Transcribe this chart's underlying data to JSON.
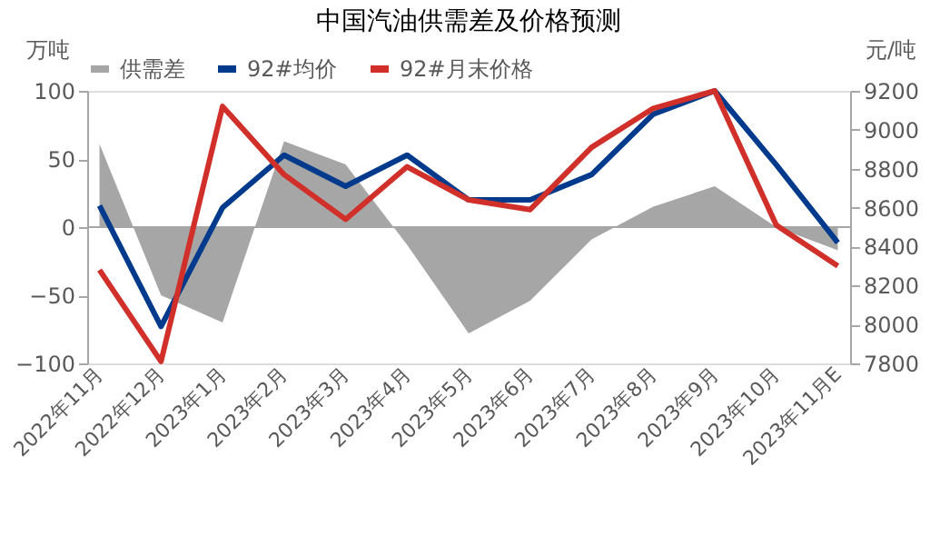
{
  "chart_data": {
    "type": "area",
    "title": "中国汽油供需差及价格预测",
    "ylabel": "万吨",
    "y2label": "元/吨",
    "categories": [
      "2022年11月",
      "2022年12月",
      "2023年1月",
      "2023年2月",
      "2023年3月",
      "2023年4月",
      "2023年5月",
      "2023年6月",
      "2023年7月",
      "2023年8月",
      "2023年9月",
      "2023年10月",
      "2023年11月E"
    ],
    "series": [
      {
        "name": "供需差",
        "color": "#a6a6a6",
        "values": [
          61,
          -50,
          -70,
          63,
          46,
          -13,
          -78,
          -54,
          -9,
          15,
          30,
          0,
          -17
        ]
      },
      {
        "name": "92#均价",
        "type": "line",
        "axis": "y2",
        "color": "#003a8c",
        "values": [
          8610,
          7990,
          8600,
          8870,
          8710,
          8870,
          8640,
          8640,
          8770,
          9080,
          9200,
          8820,
          8420
        ]
      },
      {
        "name": "92#月末价格",
        "type": "line",
        "axis": "y2",
        "color": "#d1302a",
        "values": [
          8280,
          7810,
          9120,
          8770,
          8540,
          8810,
          8640,
          8590,
          8910,
          9110,
          9200,
          8510,
          8300
        ]
      }
    ],
    "ylim": [
      -100,
      100
    ],
    "yticks": [
      -100,
      -50,
      0,
      50,
      100
    ],
    "y2lim": [
      7800,
      9200
    ],
    "y2ticks": [
      7800,
      8000,
      8200,
      8400,
      8600,
      8800,
      9000,
      9200
    ],
    "legend": "top",
    "marker": "none",
    "line_style": "solid"
  }
}
